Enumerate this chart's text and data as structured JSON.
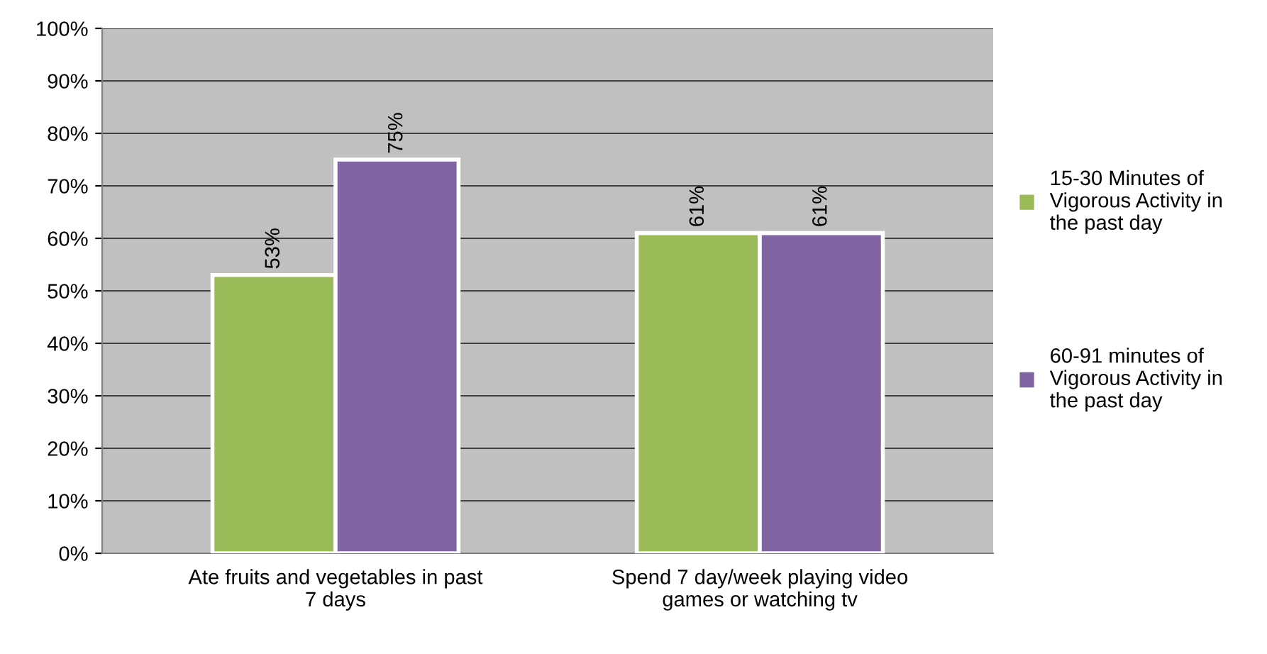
{
  "chart_data": {
    "type": "bar",
    "categories": [
      "Ate fruits and vegetables in past\n7 days",
      "Spend 7 day/week playing video\ngames or watching tv"
    ],
    "series": [
      {
        "name": "15-30 Minutes of\nVigorous Activity in\nthe past day",
        "color": "#9bbb59",
        "values": [
          53,
          61
        ],
        "value_labels": [
          "53%",
          "61%"
        ]
      },
      {
        "name": "60-91 minutes of\nVigorous Activity in\nthe past day",
        "color": "#8064a2",
        "values": [
          75,
          61
        ],
        "value_labels": [
          "75%",
          "61%"
        ]
      }
    ],
    "ylim": [
      0,
      100
    ],
    "yticks": [
      {
        "value": 0,
        "label": "0%"
      },
      {
        "value": 10,
        "label": "10%"
      },
      {
        "value": 20,
        "label": "20%"
      },
      {
        "value": 30,
        "label": "30%"
      },
      {
        "value": 40,
        "label": "40%"
      },
      {
        "value": 50,
        "label": "50%"
      },
      {
        "value": 60,
        "label": "60%"
      },
      {
        "value": 70,
        "label": "70%"
      },
      {
        "value": 80,
        "label": "80%"
      },
      {
        "value": 90,
        "label": "90%"
      },
      {
        "value": 100,
        "label": "100%"
      }
    ],
    "grid": "y",
    "legend": "right"
  }
}
